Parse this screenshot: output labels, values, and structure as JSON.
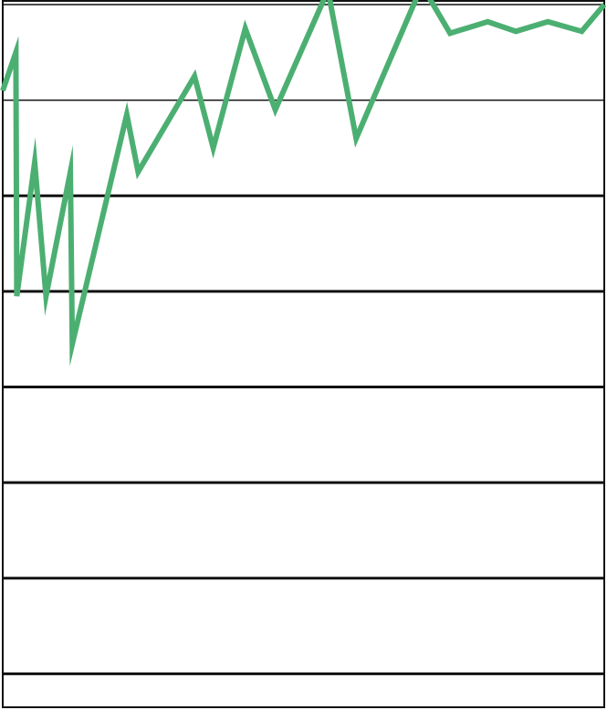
{
  "colors": {
    "line": "#4caf72",
    "grid": "#111111",
    "frame": "#111111",
    "background": "#ffffff"
  },
  "chart_data": {
    "type": "line",
    "title": "",
    "xlabel": "",
    "ylabel": "",
    "grid": true,
    "legend": "none",
    "xlim": [
      0,
      32
    ],
    "ylim": [
      0,
      7.35
    ],
    "gridlines_y": [
      0.35,
      1.35,
      2.35,
      3.35,
      4.35,
      5.35,
      6.35,
      7.35
    ],
    "series": [
      {
        "x": [
          0,
          0.7,
          0.75,
          1.7,
          2.3,
          3.6,
          3.7,
          6.6,
          7.2,
          10.2,
          11.2,
          12.9,
          14.5,
          17.3,
          18.8,
          22.3,
          23.8,
          25.8,
          27.3,
          29.0,
          30.8,
          32
        ],
        "y": [
          6.45,
          6.85,
          4.3,
          5.7,
          4.3,
          5.6,
          3.8,
          6.2,
          5.6,
          6.6,
          5.85,
          7.1,
          6.25,
          7.5,
          5.95,
          7.55,
          7.05,
          7.17,
          7.07,
          7.17,
          7.07,
          7.35
        ]
      }
    ]
  }
}
